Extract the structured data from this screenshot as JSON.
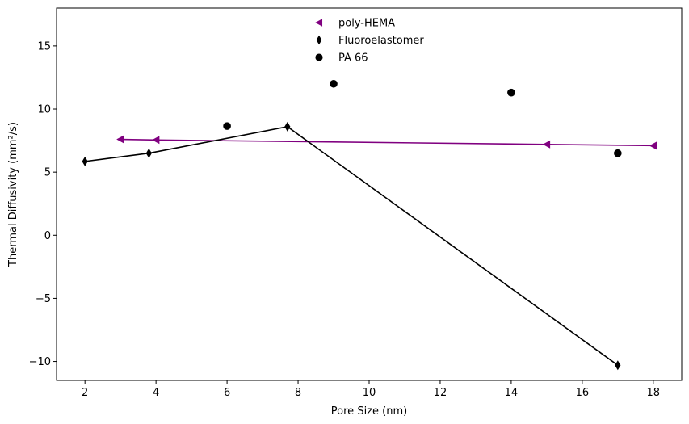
{
  "chart_data": {
    "type": "scatter",
    "title": "",
    "xlabel": "Pore Size (nm)",
    "ylabel": "Thermal Diffusivity (mm²/s)",
    "xlim": [
      1.2,
      18.8
    ],
    "ylim": [
      -11.5,
      18
    ],
    "xticks": [
      2,
      4,
      6,
      8,
      10,
      12,
      14,
      16,
      18
    ],
    "yticks": [
      -10,
      -5,
      0,
      5,
      10,
      15
    ],
    "xtick_labels": [
      "2",
      "4",
      "6",
      "8",
      "10",
      "12",
      "14",
      "16",
      "18"
    ],
    "ytick_labels": [
      "−10",
      "−5",
      "0",
      "5",
      "10",
      "15"
    ],
    "grid": false,
    "legend_position": "top-center",
    "series": [
      {
        "name": "poly-HEMA",
        "marker": "triangle-left",
        "line": true,
        "color": "#800080",
        "x": [
          3.0,
          4.0,
          15.0,
          18.0
        ],
        "y": [
          7.6,
          7.55,
          7.2,
          7.1
        ]
      },
      {
        "name": "Fluoroelastomer",
        "marker": "thin-diamond",
        "line": true,
        "color": "#000000",
        "x": [
          2.0,
          3.8,
          7.7,
          17.0
        ],
        "y": [
          5.85,
          6.5,
          8.6,
          -10.3
        ]
      },
      {
        "name": "PA 66",
        "marker": "circle",
        "line": false,
        "color": "#000000",
        "x": [
          6.0,
          9.0,
          14.0,
          17.0
        ],
        "y": [
          8.65,
          12.0,
          11.3,
          6.5
        ]
      }
    ]
  }
}
